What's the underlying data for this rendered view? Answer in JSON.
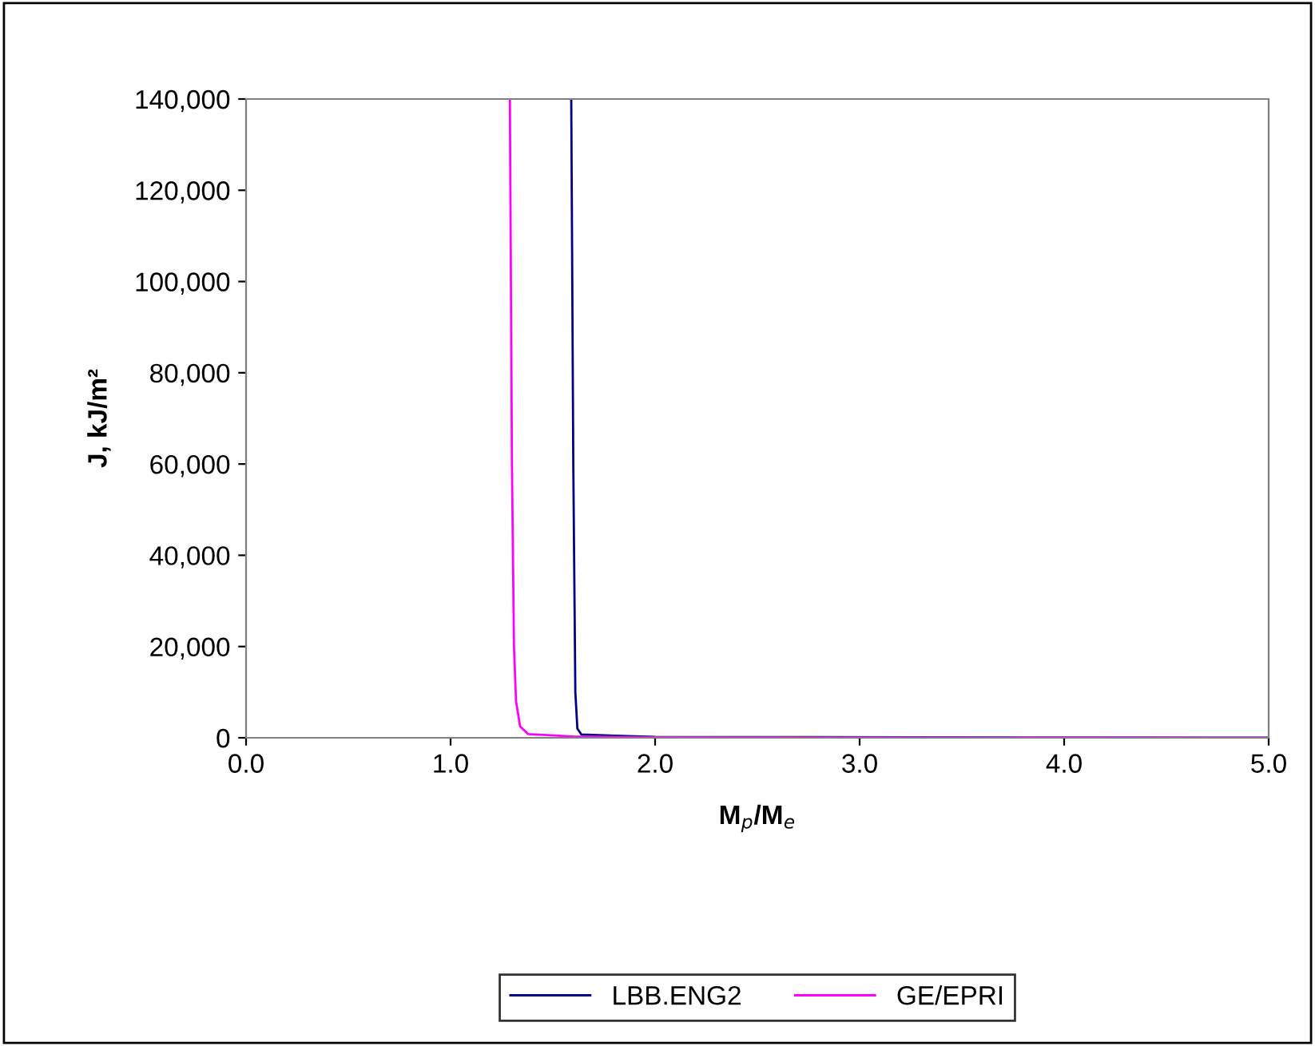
{
  "chart_data": {
    "type": "line",
    "xlabel": "M$_{p}$/M$_{e}$",
    "ylabel": "J, kJ/m²",
    "xlim": [
      0,
      5
    ],
    "xticks": [
      {
        "value": 0,
        "label": "0.0"
      },
      {
        "value": 1,
        "label": "1.0"
      },
      {
        "value": 2,
        "label": "2.0"
      },
      {
        "value": 3,
        "label": "3.0"
      },
      {
        "value": 4,
        "label": "4.0"
      },
      {
        "value": 5,
        "label": "5.0"
      }
    ],
    "ylim": [
      0,
      140000
    ],
    "yticks": [
      0,
      {
        "value": 20000,
        "label": "20,000"
      },
      {
        "value": 40000,
        "label": "40,000"
      },
      {
        "value": 60000,
        "label": "60,000"
      },
      {
        "value": 80000,
        "label": "80,000"
      },
      {
        "value": 100000,
        "label": "100,000"
      },
      {
        "value": 120000,
        "label": "120,000"
      },
      {
        "value": 140000,
        "label": "140,000"
      }
    ],
    "grid": false,
    "legend": "bottom",
    "marker": "none",
    "line_style": "solid",
    "series": [
      {
        "name": "LBB.ENG2",
        "color": "#000080",
        "x": [
          1.59,
          1.6,
          1.61,
          1.62,
          1.64,
          2.0,
          5.0
        ],
        "values": [
          140000,
          60000,
          10000,
          2000,
          700,
          200,
          0
        ]
      },
      {
        "name": "GE/EPRI",
        "color": "#ff00ff",
        "x": [
          1.29,
          1.3,
          1.31,
          1.32,
          1.34,
          1.38,
          1.6,
          2.0,
          5.0
        ],
        "values": [
          140000,
          60000,
          20000,
          8000,
          2500,
          800,
          300,
          100,
          0
        ]
      }
    ]
  }
}
